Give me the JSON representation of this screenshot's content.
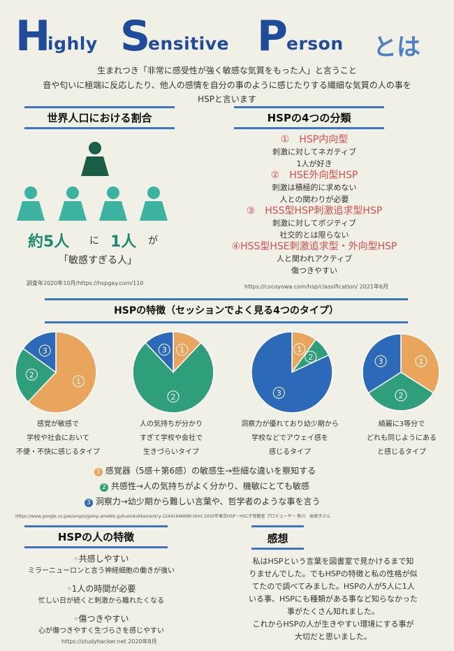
{
  "title": {
    "H": "H",
    "H_rest": "ighly",
    "S": "S",
    "S_rest": "ensitive",
    "P": "P",
    "P_rest": "erson",
    "toha": "とは"
  },
  "intro": [
    "生まれつき「非常に感受性が強く敏感な気質をもった人」と言うこと",
    "音や匂いに極端に反応したり、他人の感情を自分の事のように感じたりする繊細な気質の人の事を",
    "HSPと言います"
  ],
  "population": {
    "heading": "世界人口における割合",
    "ratio_pre": "約5人",
    "ratio_ni": "に",
    "ratio_num": "1人",
    "ratio_ga": "が",
    "sensitive": "「敏感すぎる人」",
    "source": "調査年2020年10月/https://hspgay.com/110",
    "colors": {
      "top": "#1b5e46",
      "bottom": "#3bb3a0"
    }
  },
  "types": {
    "heading": "HSPの4つの分類",
    "lines": [
      {
        "text": "①　HSP内向型",
        "style": "red"
      },
      {
        "text": "刺激に対してネガティブ",
        "style": "black"
      },
      {
        "text": "1人が好き",
        "style": "black"
      },
      {
        "text": "②　HSE外向型HSP",
        "style": "red"
      },
      {
        "text": "刺激は積極的に求めない",
        "style": "black"
      },
      {
        "text": "人との関わりが必要",
        "style": "black"
      },
      {
        "text": "③　HSS型HSP刺激追求型HSP",
        "style": "red"
      },
      {
        "text": "刺激に対してポジティブ",
        "style": "black"
      },
      {
        "text": "社交的とは限らない",
        "style": "black"
      },
      {
        "text": "④HSS型HSE刺激追求型・外向型HSP",
        "style": "red"
      },
      {
        "text": "人と関われアクティブ",
        "style": "black"
      },
      {
        "text": "傷つきやすい",
        "style": "black"
      }
    ],
    "source": "https://cocoyowa.com/hsp/classification/ 2021年6月"
  },
  "features": {
    "heading": "HSPの特徴（セッションでよく見る4つのタイプ）",
    "captions": [
      [
        "感覚が敏感で",
        "学校や社会において",
        "不便・不快に感じるタイプ"
      ],
      [
        "人の気持ちが分かり",
        "すぎて学校や会社で",
        "生きづらいタイプ"
      ],
      [
        "洞察力が優れており幼少期から",
        "学校などでアウェイ感を",
        "感じるタイプ"
      ],
      [
        "綺麗に3等分で",
        "どれも同じようにある",
        "と感じるタイプ"
      ]
    ],
    "legend": [
      {
        "num": "1",
        "text": "感覚器（5感＋第6感）の敏感生→些細な違いを察知する"
      },
      {
        "num": "2",
        "text": "共感性→人の気持ちがよく分かり、機敏にとても敏感"
      },
      {
        "num": "3",
        "text": " 洞察力→幼少期から難しい言葉や、哲学者のような事を言う"
      }
    ],
    "source": "Https://www.google.co.jpw/amp/s/gamp.ameblo.jp/kuenikokkan/entry-12441646686.html 2020年東京HSP・HSC子育教室 プロデューサー 熊川　由美子さん"
  },
  "chart_data": [
    {
      "type": "pie",
      "slices": [
        {
          "label": "①",
          "value": 62
        },
        {
          "label": "②",
          "value": 23
        },
        {
          "label": "③",
          "value": 15
        }
      ]
    },
    {
      "type": "pie",
      "slices": [
        {
          "label": "①",
          "value": 12
        },
        {
          "label": "②",
          "value": 76
        },
        {
          "label": "③",
          "value": 12
        }
      ]
    },
    {
      "type": "pie",
      "slices": [
        {
          "label": "①",
          "value": 10
        },
        {
          "label": "②",
          "value": 8
        },
        {
          "label": "③",
          "value": 82
        }
      ]
    },
    {
      "type": "pie",
      "slices": [
        {
          "label": "①",
          "value": 34
        },
        {
          "label": "②",
          "value": 32
        },
        {
          "label": "③",
          "value": 34
        }
      ]
    }
  ],
  "colors": {
    "s1": "#eaa55c",
    "s2": "#2f9e7b",
    "s3": "#2c69b8",
    "blue": "#1f4c9a"
  },
  "person": {
    "heading": "HSPの人の特徴",
    "items": [
      {
        "title": "◦共感しやすい",
        "desc": "ミラーニューロンと言う神経細胞の働きが強い"
      },
      {
        "title": "◦1人の時間が必要",
        "desc": "忙しい日が続くと刺激から離れたくなる"
      },
      {
        "title": "◦傷つきやすい",
        "desc": "心が傷つきやすく生づらさを感じやすい"
      }
    ],
    "source": "https://studyhacker.net 2020年8月"
  },
  "impression": {
    "heading": "感想",
    "lines": [
      "私はHSPという言葉を図書室で見かけるまで知",
      "りませんでした。でもHSPの特徴と私の性格が似",
      "てたので調べてみました。HSPの人が5人に1人",
      "いる事、HSPにも種類がある事など知らなかった",
      "事がたくさん知れました。",
      "これからHSPの人が生きやすい環境にする事が",
      "大切だと思いました。"
    ]
  }
}
